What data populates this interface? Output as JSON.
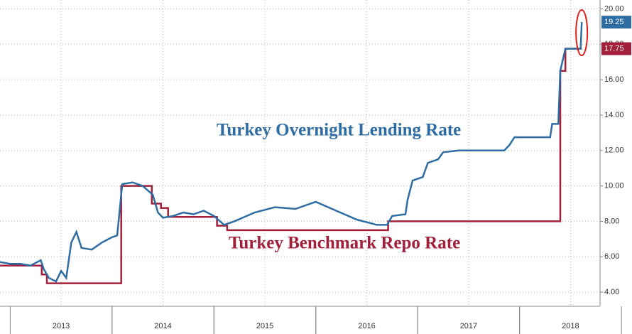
{
  "chart_data": {
    "type": "line",
    "annotations": [
      "Turkey Overnight Lending Rate",
      "Turkey Benchmark Repo Rate"
    ],
    "xlim": [
      2012.9,
      2018.79
    ],
    "xticks": [
      {
        "value": 2013.5,
        "label": "2013"
      },
      {
        "value": 2014.5,
        "label": "2014"
      },
      {
        "value": 2015.5,
        "label": "2015"
      },
      {
        "value": 2016.5,
        "label": "2016"
      },
      {
        "value": 2017.5,
        "label": "2017"
      },
      {
        "value": 2018.5,
        "label": "2018"
      }
    ],
    "ylim": [
      3.2,
      20.5
    ],
    "yticks": [
      {
        "value": 4,
        "label": "4.00"
      },
      {
        "value": 6,
        "label": "6.00"
      },
      {
        "value": 8,
        "label": "8.00"
      },
      {
        "value": 10,
        "label": "10.00"
      },
      {
        "value": 12,
        "label": "12.00"
      },
      {
        "value": 14,
        "label": "14.00"
      },
      {
        "value": 16,
        "label": "16.00"
      },
      {
        "value": 18,
        "label": "18.00"
      },
      {
        "value": 20,
        "label": "20.00"
      }
    ],
    "grid": true,
    "series": [
      {
        "name": "Turkey Benchmark Repo Rate",
        "color": "#a3203a",
        "end_label": "17.75",
        "x": [
          2012.9,
          2013.31,
          2013.31,
          2013.36,
          2013.36,
          2014.09,
          2014.09,
          2014.39,
          2014.39,
          2014.48,
          2014.48,
          2014.55,
          2014.55,
          2015.03,
          2015.03,
          2015.13,
          2015.13,
          2016.71,
          2016.71,
          2018.4,
          2018.4,
          2018.45,
          2018.45,
          2018.61
        ],
        "values": [
          5.5,
          5.5,
          5.0,
          5.0,
          4.5,
          4.5,
          10.0,
          10.0,
          9.0,
          9.0,
          8.75,
          8.75,
          8.25,
          8.25,
          7.75,
          7.75,
          7.5,
          7.5,
          8.0,
          8.0,
          16.5,
          16.5,
          17.75,
          17.75
        ]
      },
      {
        "name": "Turkey Overnight Lending Rate",
        "color": "#2e6da4",
        "end_label": "19.25",
        "x": [
          2012.9,
          2013.0,
          2013.1,
          2013.2,
          2013.3,
          2013.33,
          2013.38,
          2013.45,
          2013.5,
          2013.55,
          2013.6,
          2013.65,
          2013.7,
          2013.8,
          2013.9,
          2014.0,
          2014.05,
          2014.09,
          2014.1,
          2014.2,
          2014.3,
          2014.4,
          2014.45,
          2014.5,
          2014.6,
          2014.7,
          2014.8,
          2014.9,
          2015.0,
          2015.1,
          2015.2,
          2015.4,
          2015.6,
          2015.8,
          2016.0,
          2016.2,
          2016.4,
          2016.6,
          2016.7,
          2016.75,
          2016.88,
          2016.9,
          2016.95,
          2017.05,
          2017.1,
          2017.2,
          2017.25,
          2017.4,
          2017.7,
          2017.85,
          2017.9,
          2017.95,
          2018.3,
          2018.32,
          2018.38,
          2018.4,
          2018.45,
          2018.6,
          2018.61
        ],
        "values": [
          5.7,
          5.6,
          5.6,
          5.5,
          5.8,
          5.3,
          4.8,
          4.6,
          5.2,
          4.8,
          6.8,
          7.4,
          6.5,
          6.4,
          6.8,
          7.1,
          7.2,
          9.5,
          10.1,
          10.2,
          10.0,
          9.5,
          8.5,
          8.2,
          8.3,
          8.5,
          8.4,
          8.6,
          8.3,
          7.8,
          8.0,
          8.5,
          8.8,
          8.7,
          9.1,
          8.6,
          8.1,
          7.8,
          7.8,
          8.3,
          8.4,
          9.2,
          10.3,
          10.5,
          11.3,
          11.5,
          11.9,
          12.0,
          12.0,
          12.0,
          12.3,
          12.75,
          12.75,
          13.5,
          13.5,
          16.5,
          17.75,
          17.75,
          19.25
        ]
      }
    ]
  }
}
